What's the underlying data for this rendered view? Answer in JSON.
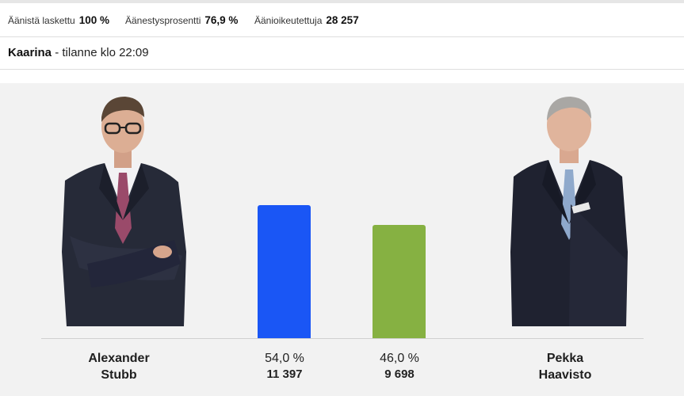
{
  "stats": {
    "counted_label": "Äänistä laskettu",
    "counted_value": "100 %",
    "turnout_label": "Äänestysprosentti",
    "turnout_value": "76,9 %",
    "eligible_label": "Äänioikeutettuja",
    "eligible_value": "28 257"
  },
  "header": {
    "municipality": "Kaarina",
    "status": " - tilanne klo 22:09"
  },
  "candidates": [
    {
      "first": "Alexander",
      "last": "Stubb",
      "percent": "54,0 %",
      "votes": "11 397",
      "share": 54.0,
      "color": "#1a56f5"
    },
    {
      "first": "Pekka",
      "last": "Haavisto",
      "percent": "46,0 %",
      "votes": "9 698",
      "share": 46.0,
      "color": "#86b142"
    }
  ],
  "colors": {
    "panel": "#f2f2f2"
  }
}
